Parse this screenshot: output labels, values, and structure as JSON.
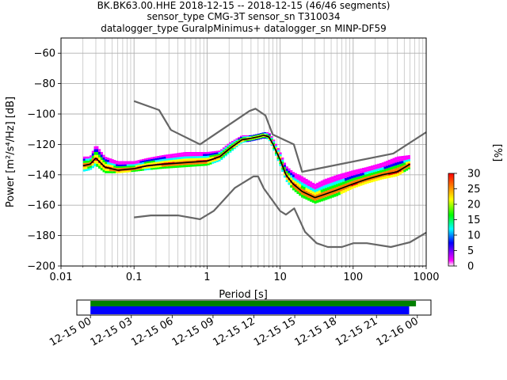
{
  "titles": [
    "BK.BK63.00.HHE   2018-12-15 -- 2018-12-15  (46/46 segments)",
    "sensor_type CMG-3T sensor_sn T310034",
    "datalogger_type GuralpMinimus+ datalogger_sn MINP-DF59"
  ],
  "chart_data": [
    {
      "type": "heatmap",
      "title": "BK.BK63.00.HHE   2018-12-15 -- 2018-12-15  (46/46 segments)",
      "xlabel": "Period [s]",
      "ylabel": "Power [m²/s⁴/Hz] [dB]",
      "xscale": "log",
      "xlim": [
        0.01,
        1000
      ],
      "ylim": [
        -200,
        -50
      ],
      "x_ticks": [
        0.01,
        0.1,
        1,
        10,
        100,
        1000
      ],
      "x_tick_labels": [
        "0.01",
        "0.1",
        "1",
        "10",
        "100",
        "1000"
      ],
      "y_ticks": [
        -200,
        -180,
        -160,
        -140,
        -120,
        -100,
        -80,
        -60
      ],
      "y_tick_labels": [
        "−200",
        "−180",
        "−160",
        "−140",
        "−120",
        "−100",
        "−80",
        "−60"
      ],
      "grid": true,
      "colorbar": {
        "label": "[%]",
        "range": [
          0,
          30
        ],
        "ticks": [
          0,
          5,
          10,
          15,
          20,
          25,
          30
        ],
        "tick_labels": [
          "0",
          "5",
          "10",
          "15",
          "20",
          "25",
          "30"
        ],
        "colormap": [
          "#ffffff",
          "#ff00ff",
          "#0000ff",
          "#00ffff",
          "#00ff00",
          "#ffff00",
          "#ff8000",
          "#ff0000"
        ]
      },
      "series": [
        {
          "name": "",
          "role": "mean",
          "color": "#000000",
          "x": [
            0.02,
            0.025,
            0.03,
            0.04,
            0.06,
            0.1,
            0.15,
            0.25,
            0.5,
            1,
            1.5,
            2,
            3,
            4,
            5,
            6,
            7,
            8,
            10,
            12,
            15,
            20,
            30,
            40,
            60,
            100,
            150,
            250,
            400,
            600
          ],
          "y": [
            -134,
            -133,
            -129,
            -135,
            -137,
            -136,
            -134,
            -133,
            -132,
            -131,
            -128,
            -123,
            -117,
            -116,
            -115,
            -114,
            -115,
            -120,
            -130,
            -140,
            -146,
            -151,
            -155,
            -153,
            -150,
            -146,
            -143,
            -140,
            -138,
            -133
          ]
        },
        {
          "name": "",
          "role": "high-noise model",
          "color": "#666666",
          "x": [
            0.1,
            0.22,
            0.32,
            0.8,
            3.8,
            4.6,
            6.3,
            7.9,
            15.4,
            20,
            354.8,
            1000
          ],
          "y": [
            -91.5,
            -97.4,
            -110.5,
            -120,
            -98,
            -96.5,
            -101,
            -113.5,
            -120,
            -138,
            -126,
            -112
          ]
        },
        {
          "name": "",
          "role": "low-noise model",
          "color": "#666666",
          "x": [
            0.1,
            0.17,
            0.4,
            0.8,
            1.24,
            2.4,
            4.3,
            5,
            6,
            10,
            12,
            15.6,
            21.9,
            31.6,
            45,
            70,
            101,
            154,
            328,
            600,
            1000
          ],
          "y": [
            -168,
            -166.7,
            -166.7,
            -169.2,
            -163.7,
            -148.6,
            -141.1,
            -141.1,
            -149,
            -163.8,
            -166.2,
            -162.1,
            -177.5,
            -185,
            -187.5,
            -187.5,
            -185,
            -185,
            -187.5,
            -184.4,
            -178
          ]
        }
      ],
      "density_band": {
        "x": [
          0.02,
          0.025,
          0.03,
          0.04,
          0.06,
          0.1,
          0.15,
          0.25,
          0.5,
          1,
          1.5,
          2,
          3,
          4,
          5,
          6,
          7,
          8,
          10,
          12,
          15,
          20,
          30,
          40,
          60,
          100,
          150,
          250,
          400,
          600
        ],
        "center": [
          -134,
          -133,
          -129,
          -135,
          -137,
          -136,
          -134,
          -133,
          -132,
          -131,
          -128,
          -123,
          -117,
          -116,
          -115,
          -114,
          -115,
          -120,
          -130,
          -140,
          -146,
          -151,
          -155,
          -153,
          -150,
          -146,
          -143,
          -140,
          -138,
          -133
        ],
        "lower": [
          -138,
          -137,
          -134,
          -139,
          -139,
          -138,
          -137,
          -136,
          -135,
          -134,
          -131,
          -126,
          -119,
          -118,
          -117,
          -116,
          -117,
          -123,
          -134,
          -144,
          -150,
          -155,
          -159,
          -157,
          -154,
          -149,
          -146,
          -143,
          -141,
          -136
        ],
        "upper": [
          -128,
          -128,
          -120,
          -128,
          -131,
          -131,
          -129,
          -127,
          -125,
          -125,
          -124,
          -119,
          -114,
          -114,
          -113,
          -112,
          -112,
          -116,
          -125,
          -134,
          -138,
          -141,
          -146,
          -143,
          -140,
          -137,
          -135,
          -132,
          -128,
          -127
        ]
      }
    },
    {
      "type": "bar",
      "role": "data availability timeline",
      "x_tick_labels": [
        "12-15 00",
        "12-15 03",
        "12-15 06",
        "12-15 09",
        "12-15 12",
        "12-15 15",
        "12-15 18",
        "12-15 21",
        "12-16 00"
      ],
      "xlim_hours": [
        -1,
        25
      ],
      "bars": [
        {
          "color": "#008000",
          "start_hours": 0,
          "end_hours": 23.9
        },
        {
          "color": "#0000ff",
          "start_hours": 0,
          "end_hours": 23.4
        }
      ]
    }
  ]
}
